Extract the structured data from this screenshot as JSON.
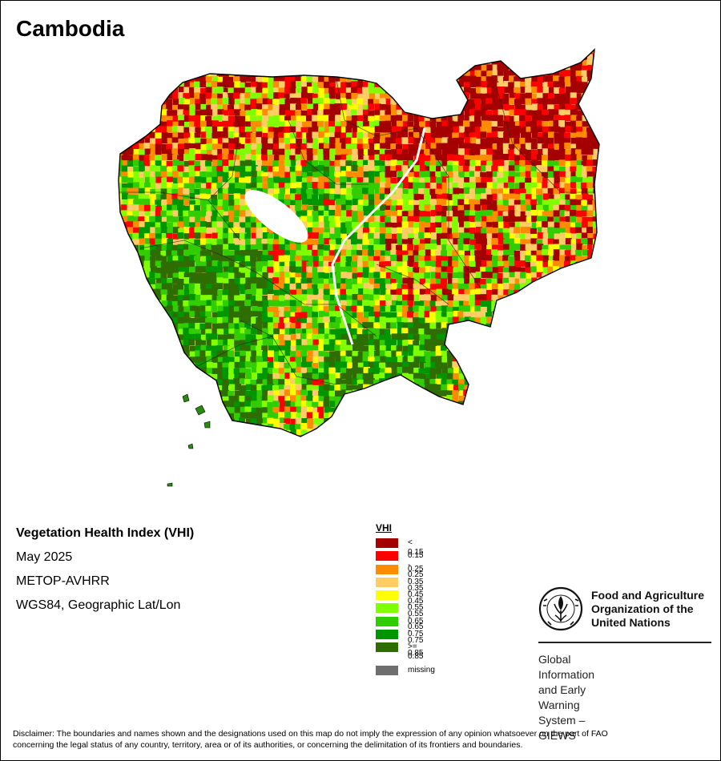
{
  "map": {
    "title": "Cambodia"
  },
  "info": {
    "title": "Vegetation Health Index (VHI)",
    "period": "May 2025",
    "sensor": "METOP-AVHRR",
    "projection": "WGS84, Geographic Lat/Lon"
  },
  "legend": {
    "title": "VHI",
    "classes": [
      {
        "label": "< 0.15",
        "color": "#a50000"
      },
      {
        "label": "0.15 - 0.25",
        "color": "#ff0000"
      },
      {
        "label": "0.25 - 0.35",
        "color": "#ff8c00"
      },
      {
        "label": "0.35 - 0.45",
        "color": "#ffcc66"
      },
      {
        "label": "0.45 - 0.55",
        "color": "#ffff00"
      },
      {
        "label": "0.55 - 0.65",
        "color": "#80ff00"
      },
      {
        "label": "0.65 - 0.75",
        "color": "#32cd00"
      },
      {
        "label": "0.75 - 0.85",
        "color": "#009600"
      },
      {
        "label": ">= 0.85",
        "color": "#2e6e00"
      }
    ],
    "missing": {
      "label": "missing",
      "color": "#6e6e6e"
    }
  },
  "logo": {
    "emblem_icon": "fao-emblem-icon",
    "org_line1": "Food and Agriculture",
    "org_line2": "Organization of the",
    "org_line3": "United Nations",
    "giews_line1": "Global Information and Early",
    "giews_line2": "Warning System – GIEWS"
  },
  "disclaimer": {
    "line1": "Disclaimer: The boundaries and names shown and the designations used on this map do not imply the expression of any opinion whatsoever on the part of FAO",
    "line2": "concerning the legal status of any country, territory, area or of its authorities, or concerning the delimitation of its frontiers and boundaries."
  }
}
